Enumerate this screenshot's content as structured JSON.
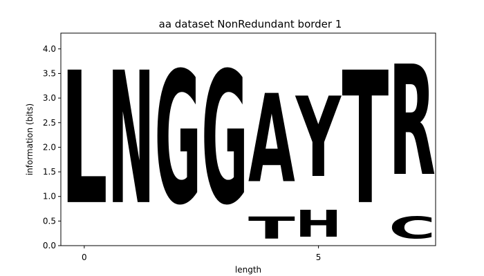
{
  "chart_data": {
    "type": "sequence-logo",
    "title": "aa dataset NonRedundant border 1",
    "xlabel": "length",
    "ylabel": "information (bits)",
    "xlim": [
      -0.5,
      7.5
    ],
    "ylim": [
      0,
      4.32
    ],
    "xticks": [
      0,
      5
    ],
    "yticks": [
      0.0,
      0.5,
      1.0,
      1.5,
      2.0,
      2.5,
      3.0,
      3.5,
      4.0
    ],
    "colors": {
      "L": "#000000",
      "A": "#000000",
      "N": "#cc22cc",
      "G": "#22dd22",
      "T": "#22dd22",
      "Y": "#22dd22",
      "C": "#22dd22",
      "H": "#0b1fbf",
      "R": "#0b1fbf"
    },
    "positions": [
      {
        "x": 0,
        "letters": [
          {
            "letter": "L",
            "height": 4.32
          }
        ]
      },
      {
        "x": 1,
        "letters": [
          {
            "letter": "N",
            "height": 4.32
          }
        ]
      },
      {
        "x": 2,
        "letters": [
          {
            "letter": "G",
            "height": 4.32
          }
        ]
      },
      {
        "x": 3,
        "letters": [
          {
            "letter": "G",
            "height": 4.32
          }
        ]
      },
      {
        "x": 4,
        "letters": [
          {
            "letter": "T",
            "height": 0.72
          },
          {
            "letter": "A",
            "height": 2.88
          }
        ]
      },
      {
        "x": 5,
        "letters": [
          {
            "letter": "H",
            "height": 0.88
          },
          {
            "letter": "Y",
            "height": 2.62
          }
        ]
      },
      {
        "x": 6,
        "letters": [
          {
            "letter": "T",
            "height": 4.32
          }
        ]
      },
      {
        "x": 7,
        "letters": [
          {
            "letter": "C",
            "height": 0.72
          },
          {
            "letter": "R",
            "height": 3.6
          }
        ]
      }
    ]
  }
}
